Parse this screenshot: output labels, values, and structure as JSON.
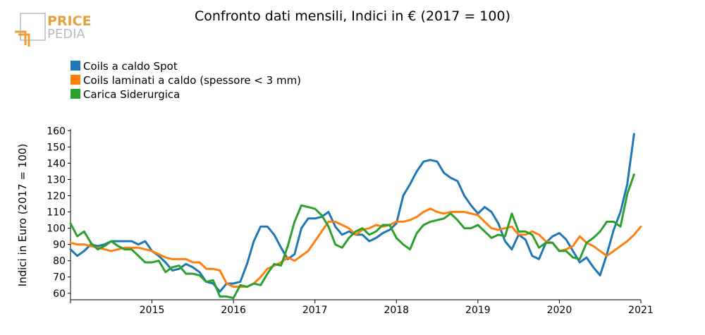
{
  "logo": {
    "line1": "PRICE",
    "line2": "PEDIA",
    "accent_color": "#e8a03c",
    "gray_color": "#b7bcc2"
  },
  "chart_data": {
    "type": "line",
    "title": "Confronto dati mensili, Indici in € (2017 = 100)",
    "xlabel": "",
    "ylabel": "Indici in Euro (2017 = 100)",
    "xlim": [
      2014.0,
      2021.0
    ],
    "ylim": [
      56,
      161
    ],
    "y_ticks": [
      60,
      70,
      80,
      90,
      100,
      110,
      120,
      130,
      140,
      150,
      160
    ],
    "x_ticks": [
      2015,
      2016,
      2017,
      2018,
      2019,
      2020,
      2021
    ],
    "grid": false,
    "legend_position": "top-left",
    "series": [
      {
        "name": "Coils a caldo Spot",
        "color": "#1f77b4",
        "start": 2014.0,
        "step_months": 1,
        "values": [
          87,
          83,
          86,
          90,
          89,
          90,
          92,
          92,
          92,
          92,
          90,
          92,
          86,
          83,
          79,
          74,
          75,
          78,
          76,
          73,
          67,
          66,
          61,
          66,
          66,
          67,
          78,
          92,
          101,
          101,
          96,
          88,
          81,
          84,
          100,
          106,
          106,
          107,
          110,
          101,
          96,
          98,
          96,
          96,
          92,
          94,
          97,
          99,
          103,
          120,
          127,
          135,
          141,
          142,
          141,
          134,
          131,
          129,
          120,
          114,
          109,
          113,
          110,
          103,
          92,
          87,
          96,
          93,
          83,
          81,
          91,
          95,
          97,
          93,
          86,
          79,
          82,
          76,
          71,
          84,
          99,
          110,
          127,
          158
        ]
      },
      {
        "name": "Coils laminati a caldo (spessore < 3 mm)",
        "color": "#ff7f0e",
        "start": 2014.0,
        "step_months": 1,
        "values": [
          91,
          90,
          90,
          89,
          88,
          87,
          86,
          87,
          88,
          88,
          88,
          87,
          86,
          84,
          82,
          81,
          81,
          81,
          79,
          79,
          75,
          75,
          74,
          66,
          64,
          64,
          64,
          66,
          70,
          75,
          77,
          79,
          82,
          80,
          83,
          86,
          92,
          98,
          104,
          104,
          102,
          100,
          96,
          99,
          100,
          102,
          101,
          102,
          104,
          104,
          105,
          107,
          110,
          112,
          110,
          109,
          110,
          110,
          110,
          109,
          108,
          104,
          100,
          99,
          100,
          101,
          96,
          96,
          98,
          96,
          92,
          91,
          86,
          87,
          89,
          95,
          91,
          89,
          86,
          83,
          86,
          89,
          92,
          96,
          101
        ]
      },
      {
        "name": "Carica Siderurgica",
        "color": "#2ca02c",
        "start": 2014.0,
        "step_months": 1,
        "values": [
          103,
          95,
          98,
          91,
          87,
          89,
          92,
          89,
          87,
          87,
          83,
          79,
          79,
          80,
          73,
          76,
          77,
          72,
          72,
          71,
          67,
          68,
          58,
          58,
          57,
          65,
          64,
          66,
          65,
          72,
          78,
          77,
          89,
          104,
          114,
          113,
          112,
          108,
          101,
          90,
          88,
          94,
          98,
          100,
          96,
          98,
          102,
          102,
          94,
          90,
          87,
          97,
          102,
          104,
          105,
          106,
          109,
          105,
          100,
          100,
          102,
          98,
          94,
          96,
          95,
          109,
          98,
          98,
          96,
          88,
          91,
          91,
          86,
          86,
          82,
          81,
          91,
          94,
          98,
          104,
          104,
          101,
          121,
          133
        ]
      }
    ]
  }
}
